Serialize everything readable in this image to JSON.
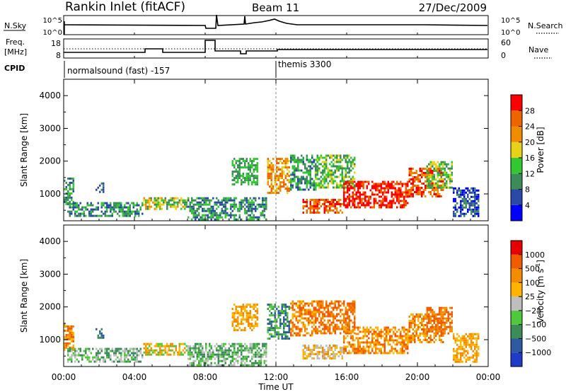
{
  "header": {
    "station": "Rankin Inlet (fitACF)",
    "beam": "Beam 11",
    "date": "27/Dec/2009"
  },
  "top_panels": {
    "nsky_label": "N.Sky",
    "nsky_ticks": [
      "10^5",
      "10^0"
    ],
    "nsearch_label": "N.Search",
    "nsearch_ticks": [
      "10^5",
      "10^0"
    ],
    "freq_label": "Freq.",
    "freq_unit": "[MHz]",
    "freq_ticks": [
      "18",
      "8"
    ],
    "nave_label": "Nave",
    "nave_ticks": [
      "60",
      "0"
    ],
    "cpid_label": "CPID",
    "cpid_modes": [
      {
        "label": "normalsound (fast) -157",
        "start_hour": 0
      },
      {
        "label": "themis 3300",
        "start_hour": 12
      }
    ]
  },
  "colors": {
    "power_scale": [
      "#0000ff",
      "#2a4aa8",
      "#3c8c5a",
      "#32c832",
      "#e6d219",
      "#f08c00",
      "#f06400",
      "#ff0000"
    ],
    "velocity_scale": [
      "#1e3cc8",
      "#2d5aa0",
      "#3c8c5a",
      "#50c83c",
      "#bebebe",
      "#ffb400",
      "#f58c00",
      "#f05a00",
      "#e60000"
    ]
  },
  "chart_data": [
    {
      "type": "heatmap",
      "name": "power",
      "ylabel": "Slant Range [km]",
      "ylim": [
        180,
        4500
      ],
      "yticks": [
        "1000",
        "2000",
        "3000",
        "4000"
      ],
      "xlim": [
        0,
        24
      ],
      "colorbar_label": "Power [dB]",
      "colorbar_ticks": [
        "28",
        "24",
        "20",
        "16",
        "12",
        "8",
        "4"
      ],
      "regions": [
        {
          "t": [
            0.0,
            0.6
          ],
          "r": [
            700,
            1500
          ],
          "c": [
            1,
            2,
            3
          ]
        },
        {
          "t": [
            0.2,
            4.5
          ],
          "r": [
            300,
            750
          ],
          "c": [
            1,
            2,
            3
          ]
        },
        {
          "t": [
            1.8,
            2.3
          ],
          "r": [
            1050,
            1350
          ],
          "c": [
            1,
            2
          ]
        },
        {
          "t": [
            4.5,
            7.0
          ],
          "r": [
            550,
            900
          ],
          "c": [
            2,
            3,
            4,
            5
          ]
        },
        {
          "t": [
            7.0,
            11.5
          ],
          "r": [
            200,
            900
          ],
          "c": [
            1,
            2,
            3
          ]
        },
        {
          "t": [
            9.5,
            11.0
          ],
          "r": [
            1300,
            2100
          ],
          "c": [
            2,
            3
          ]
        },
        {
          "t": [
            11.5,
            12.8
          ],
          "r": [
            1000,
            2100
          ],
          "c": [
            4,
            5,
            6
          ]
        },
        {
          "t": [
            12.8,
            14.3
          ],
          "r": [
            1100,
            2200
          ],
          "c": [
            1,
            2,
            3
          ]
        },
        {
          "t": [
            13.5,
            15.8
          ],
          "r": [
            400,
            850
          ],
          "c": [
            5,
            6,
            7
          ]
        },
        {
          "t": [
            14.2,
            16.5
          ],
          "r": [
            1200,
            2200
          ],
          "c": [
            3,
            4,
            2
          ]
        },
        {
          "t": [
            15.8,
            19.5
          ],
          "r": [
            600,
            1400
          ],
          "c": [
            6,
            7,
            7
          ]
        },
        {
          "t": [
            19.5,
            21.5
          ],
          "r": [
            900,
            1800
          ],
          "c": [
            5,
            6,
            7
          ]
        },
        {
          "t": [
            20.5,
            22.0
          ],
          "r": [
            1200,
            2000
          ],
          "c": [
            3,
            4,
            2
          ]
        },
        {
          "t": [
            22.0,
            23.5
          ],
          "r": [
            300,
            1200
          ],
          "c": [
            0,
            1,
            2
          ]
        }
      ]
    },
    {
      "type": "heatmap",
      "name": "velocity",
      "ylabel": "Slant Range [km]",
      "ylim": [
        180,
        4500
      ],
      "yticks": [
        "1000",
        "2000",
        "3000",
        "4000"
      ],
      "xlim": [
        0,
        24
      ],
      "colorbar_label": "Velocity [m s",
      "colorbar_unit_exp": "-1",
      "colorbar_ticks": [
        "1000",
        "500",
        "100",
        "25",
        "−25",
        "−100",
        "−500",
        "−1000"
      ],
      "regions": [
        {
          "t": [
            0.0,
            0.6
          ],
          "r": [
            700,
            1500
          ],
          "c": [
            5,
            6,
            7
          ]
        },
        {
          "t": [
            0.2,
            4.5
          ],
          "r": [
            300,
            750
          ],
          "c": [
            2,
            3,
            4
          ]
        },
        {
          "t": [
            1.8,
            2.3
          ],
          "r": [
            1050,
            1350
          ],
          "c": [
            1,
            2
          ]
        },
        {
          "t": [
            4.5,
            7.0
          ],
          "r": [
            550,
            900
          ],
          "c": [
            3,
            5,
            6
          ]
        },
        {
          "t": [
            7.0,
            11.5
          ],
          "r": [
            200,
            900
          ],
          "c": [
            2,
            3,
            4
          ]
        },
        {
          "t": [
            9.5,
            11.0
          ],
          "r": [
            1300,
            2100
          ],
          "c": [
            5,
            6
          ]
        },
        {
          "t": [
            11.5,
            12.8
          ],
          "r": [
            1000,
            2100
          ],
          "c": [
            1,
            2,
            3
          ]
        },
        {
          "t": [
            12.8,
            14.3
          ],
          "r": [
            1100,
            2200
          ],
          "c": [
            5,
            6,
            7
          ]
        },
        {
          "t": [
            13.5,
            15.8
          ],
          "r": [
            400,
            850
          ],
          "c": [
            4,
            5,
            6
          ]
        },
        {
          "t": [
            14.2,
            16.5
          ],
          "r": [
            1200,
            2200
          ],
          "c": [
            6,
            7
          ]
        },
        {
          "t": [
            15.8,
            19.5
          ],
          "r": [
            600,
            1400
          ],
          "c": [
            5,
            6,
            7
          ]
        },
        {
          "t": [
            19.5,
            21.5
          ],
          "r": [
            900,
            1800
          ],
          "c": [
            5,
            6,
            7
          ]
        },
        {
          "t": [
            20.5,
            22.0
          ],
          "r": [
            1200,
            2000
          ],
          "c": [
            6,
            7
          ]
        },
        {
          "t": [
            22.0,
            23.5
          ],
          "r": [
            300,
            1200
          ],
          "c": [
            5,
            6
          ]
        }
      ]
    }
  ],
  "time_axis": {
    "ticks": [
      "00:00",
      "04:00",
      "08:00",
      "12:00",
      "16:00",
      "20:00",
      "00:00"
    ],
    "label": "Time UT"
  }
}
